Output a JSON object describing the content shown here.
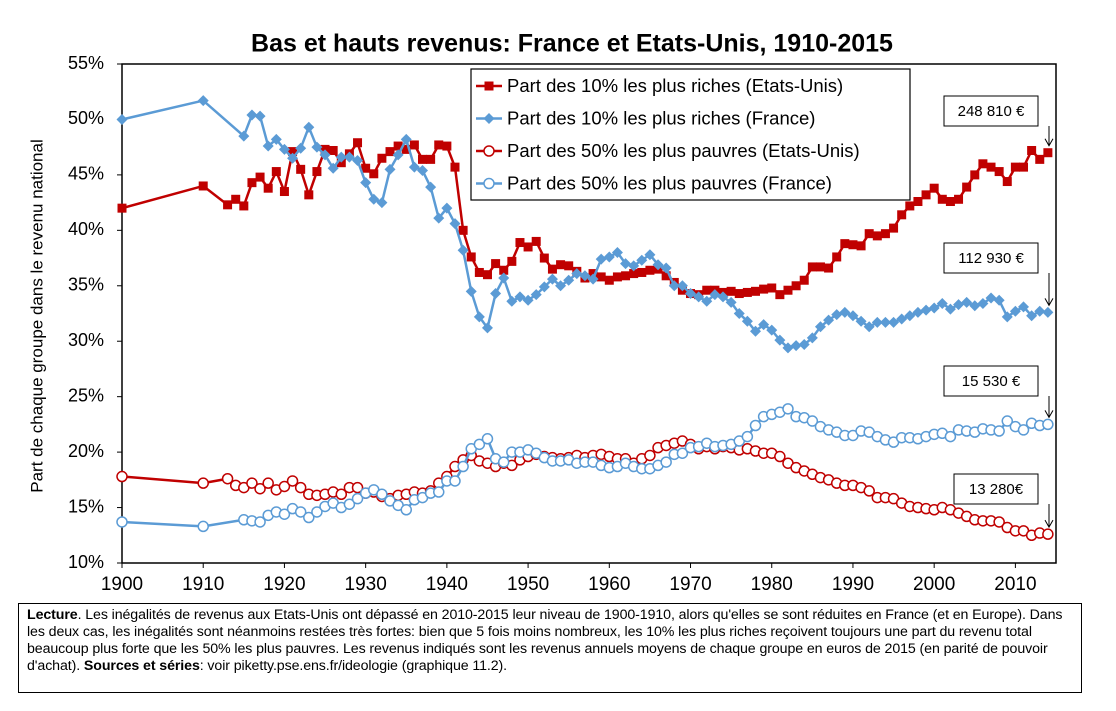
{
  "chart_data": {
    "type": "line",
    "title": "Bas et hauts revenus: France et Etats-Unis, 1910-2015",
    "y_label": "Part de chaque groupe dans le revenu national",
    "xlim": [
      1900,
      2015
    ],
    "xticks": [
      1900,
      1910,
      1920,
      1930,
      1940,
      1950,
      1960,
      1970,
      1980,
      1990,
      2000,
      2010
    ],
    "ylim": [
      10,
      55
    ],
    "yticks": [
      {
        "value": 10,
        "label": "10%"
      },
      {
        "value": 15,
        "label": "15%"
      },
      {
        "value": 20,
        "label": "20%"
      },
      {
        "value": 25,
        "label": "25%"
      },
      {
        "value": 30,
        "label": "30%"
      },
      {
        "value": 35,
        "label": "35%"
      },
      {
        "value": 40,
        "label": "40%"
      },
      {
        "value": 45,
        "label": "45%"
      },
      {
        "value": 50,
        "label": "50%"
      },
      {
        "value": 55,
        "label": "55%"
      }
    ],
    "legend": "top",
    "series": [
      {
        "name": "Part des 10% les plus riches (Etats-Unis)",
        "color": "#c00000",
        "marker": "square",
        "x": [
          1900,
          1910,
          1913,
          1914,
          1915,
          1916,
          1917,
          1918,
          1919,
          1920,
          1921,
          1922,
          1923,
          1924,
          1925,
          1926,
          1927,
          1928,
          1929,
          1930,
          1931,
          1932,
          1933,
          1934,
          1935,
          1936,
          1937,
          1938,
          1939,
          1940,
          1941,
          1942,
          1943,
          1944,
          1945,
          1946,
          1947,
          1948,
          1949,
          1950,
          1951,
          1952,
          1953,
          1954,
          1955,
          1956,
          1957,
          1958,
          1959,
          1960,
          1961,
          1962,
          1963,
          1964,
          1965,
          1966,
          1967,
          1968,
          1969,
          1970,
          1971,
          1972,
          1973,
          1974,
          1975,
          1976,
          1977,
          1978,
          1979,
          1980,
          1981,
          1982,
          1983,
          1984,
          1985,
          1986,
          1987,
          1988,
          1989,
          1990,
          1991,
          1992,
          1993,
          1994,
          1995,
          1996,
          1997,
          1998,
          1999,
          2000,
          2001,
          2002,
          2003,
          2004,
          2005,
          2006,
          2007,
          2008,
          2009,
          2010,
          2011,
          2012,
          2013,
          2014
        ],
        "values": [
          42,
          44,
          42.3,
          42.8,
          42.2,
          44.3,
          44.8,
          43.8,
          45.3,
          43.5,
          47.1,
          45.5,
          43.2,
          45.3,
          47.3,
          47.2,
          46.1,
          46.9,
          47.9,
          45.6,
          45.1,
          46.5,
          47.1,
          47.6,
          47.3,
          47.7,
          46.4,
          46.4,
          47.7,
          47.6,
          45.7,
          40.0,
          37.6,
          36.2,
          36.0,
          37.0,
          36.4,
          37.2,
          38.9,
          38.5,
          39.0,
          37.5,
          36.5,
          36.9,
          36.8,
          36.3,
          35.7,
          36.1,
          35.8,
          35.5,
          35.8,
          35.9,
          36.1,
          36.2,
          36.4,
          36.5,
          35.9,
          35.3,
          34.6,
          34.3,
          34.2,
          34.6,
          34.6,
          34.4,
          34.5,
          34.3,
          34.4,
          34.5,
          34.7,
          34.8,
          34.2,
          34.6,
          35.0,
          35.5,
          36.7,
          36.7,
          36.6,
          37.6,
          38.8,
          38.7,
          38.6,
          39.7,
          39.5,
          39.7,
          40.2,
          41.4,
          42.2,
          42.6,
          43.2,
          43.8,
          42.8,
          42.6,
          42.8,
          43.9,
          45.0,
          46.0,
          45.7,
          45.3,
          44.4,
          45.7,
          45.7,
          47.2,
          46.4,
          47.0
        ]
      },
      {
        "name": "Part des 10% les plus riches (France)",
        "color": "#5b9bd5",
        "marker": "diamond",
        "x": [
          1900,
          1910,
          1915,
          1916,
          1917,
          1918,
          1919,
          1920,
          1921,
          1922,
          1923,
          1924,
          1925,
          1926,
          1927,
          1928,
          1929,
          1930,
          1931,
          1932,
          1933,
          1934,
          1935,
          1936,
          1937,
          1938,
          1939,
          1940,
          1941,
          1942,
          1943,
          1944,
          1945,
          1946,
          1947,
          1948,
          1949,
          1950,
          1951,
          1952,
          1953,
          1954,
          1955,
          1956,
          1957,
          1958,
          1959,
          1960,
          1961,
          1962,
          1963,
          1964,
          1965,
          1966,
          1967,
          1968,
          1969,
          1970,
          1971,
          1972,
          1973,
          1974,
          1975,
          1976,
          1977,
          1978,
          1979,
          1980,
          1981,
          1982,
          1983,
          1984,
          1985,
          1986,
          1987,
          1988,
          1989,
          1990,
          1991,
          1992,
          1993,
          1994,
          1995,
          1996,
          1997,
          1998,
          1999,
          2000,
          2001,
          2002,
          2003,
          2004,
          2005,
          2006,
          2007,
          2008,
          2009,
          2010,
          2011,
          2012,
          2013,
          2014
        ],
        "values": [
          50,
          51.7,
          48.5,
          50.4,
          50.3,
          47.6,
          48.2,
          47.3,
          46.5,
          47.4,
          49.3,
          47.5,
          46.8,
          45.6,
          46.6,
          46.6,
          46.3,
          44.3,
          42.8,
          42.5,
          45.5,
          46.8,
          48.2,
          45.7,
          45.4,
          43.9,
          41.1,
          42.0,
          40.6,
          38.2,
          34.5,
          32.2,
          31.2,
          34.3,
          35.7,
          33.6,
          34.0,
          33.7,
          34.2,
          34.9,
          35.6,
          35.0,
          35.5,
          36.1,
          35.9,
          35.6,
          37.4,
          37.6,
          38.0,
          37.0,
          36.8,
          37.3,
          37.8,
          36.9,
          36.6,
          35.0,
          35.0,
          34.3,
          34.0,
          33.6,
          34.2,
          34.0,
          33.5,
          32.5,
          31.8,
          30.9,
          31.5,
          31.0,
          30.1,
          29.4,
          29.6,
          29.7,
          30.3,
          31.3,
          31.9,
          32.4,
          32.6,
          32.3,
          31.8,
          31.3,
          31.7,
          31.7,
          31.7,
          32.0,
          32.3,
          32.6,
          32.8,
          33.0,
          33.4,
          32.9,
          33.3,
          33.5,
          33.2,
          33.4,
          33.9,
          33.7,
          32.2,
          32.7,
          33.1,
          32.3,
          32.7,
          32.6
        ]
      },
      {
        "name": "Part des 50% les plus pauvres (Etats-Unis)",
        "color": "#c00000",
        "marker": "circle",
        "x": [
          1900,
          1910,
          1913,
          1914,
          1915,
          1916,
          1917,
          1918,
          1919,
          1920,
          1921,
          1922,
          1923,
          1924,
          1925,
          1926,
          1927,
          1928,
          1929,
          1930,
          1931,
          1932,
          1933,
          1934,
          1935,
          1936,
          1937,
          1938,
          1939,
          1940,
          1941,
          1942,
          1943,
          1944,
          1945,
          1946,
          1947,
          1948,
          1949,
          1950,
          1951,
          1952,
          1953,
          1954,
          1955,
          1956,
          1957,
          1958,
          1959,
          1960,
          1961,
          1962,
          1963,
          1964,
          1965,
          1966,
          1967,
          1968,
          1969,
          1970,
          1971,
          1972,
          1973,
          1974,
          1975,
          1976,
          1977,
          1978,
          1979,
          1980,
          1981,
          1982,
          1983,
          1984,
          1985,
          1986,
          1987,
          1988,
          1989,
          1990,
          1991,
          1992,
          1993,
          1994,
          1995,
          1996,
          1997,
          1998,
          1999,
          2000,
          2001,
          2002,
          2003,
          2004,
          2005,
          2006,
          2007,
          2008,
          2009,
          2010,
          2011,
          2012,
          2013,
          2014
        ],
        "values": [
          17.8,
          17.2,
          17.6,
          17.0,
          16.8,
          17.2,
          16.7,
          17.2,
          16.6,
          16.9,
          17.4,
          16.8,
          16.2,
          16.1,
          16.2,
          16.4,
          16.2,
          16.8,
          16.8,
          16.3,
          16.4,
          16.0,
          15.8,
          16.1,
          16.2,
          16.4,
          16.3,
          16.5,
          17.2,
          17.8,
          18.7,
          19.3,
          19.7,
          19.2,
          19.0,
          18.7,
          19.0,
          18.8,
          19.3,
          19.6,
          19.8,
          19.6,
          19.5,
          19.4,
          19.5,
          19.7,
          19.5,
          19.7,
          19.8,
          19.6,
          19.4,
          19.4,
          19.0,
          19.4,
          19.7,
          20.4,
          20.6,
          20.8,
          21.0,
          20.7,
          20.3,
          20.5,
          20.3,
          20.5,
          20.4,
          20.2,
          20.3,
          20.1,
          19.9,
          19.9,
          19.6,
          19.0,
          18.6,
          18.3,
          18.0,
          17.7,
          17.5,
          17.2,
          17.0,
          17.0,
          16.8,
          16.5,
          15.9,
          15.9,
          15.8,
          15.4,
          15.1,
          15.0,
          14.9,
          14.8,
          15.0,
          14.8,
          14.5,
          14.2,
          13.9,
          13.8,
          13.8,
          13.7,
          13.2,
          12.9,
          12.9,
          12.5,
          12.7,
          12.6
        ]
      },
      {
        "name": "Part des 50% les plus pauvres (France)",
        "color": "#5b9bd5",
        "marker": "circle",
        "x": [
          1900,
          1910,
          1915,
          1916,
          1917,
          1918,
          1919,
          1920,
          1921,
          1922,
          1923,
          1924,
          1925,
          1926,
          1927,
          1928,
          1929,
          1930,
          1931,
          1932,
          1933,
          1934,
          1935,
          1936,
          1937,
          1938,
          1939,
          1940,
          1941,
          1942,
          1943,
          1944,
          1945,
          1946,
          1947,
          1948,
          1949,
          1950,
          1951,
          1952,
          1953,
          1954,
          1955,
          1956,
          1957,
          1958,
          1959,
          1960,
          1961,
          1962,
          1963,
          1964,
          1965,
          1966,
          1967,
          1968,
          1969,
          1970,
          1971,
          1972,
          1973,
          1974,
          1975,
          1976,
          1977,
          1978,
          1979,
          1980,
          1981,
          1982,
          1983,
          1984,
          1985,
          1986,
          1987,
          1988,
          1989,
          1990,
          1991,
          1992,
          1993,
          1994,
          1995,
          1996,
          1997,
          1998,
          1999,
          2000,
          2001,
          2002,
          2003,
          2004,
          2005,
          2006,
          2007,
          2008,
          2009,
          2010,
          2011,
          2012,
          2013,
          2014
        ],
        "values": [
          13.7,
          13.3,
          13.9,
          13.8,
          13.7,
          14.3,
          14.6,
          14.4,
          14.9,
          14.6,
          14.1,
          14.6,
          15.1,
          15.4,
          15.0,
          15.3,
          15.8,
          16.3,
          16.6,
          16.2,
          15.6,
          15.2,
          14.8,
          15.7,
          15.9,
          16.3,
          16.4,
          17.4,
          17.4,
          18.7,
          20.3,
          20.7,
          21.2,
          19.4,
          19.1,
          20.0,
          20.0,
          20.2,
          19.9,
          19.5,
          19.2,
          19.2,
          19.3,
          19.0,
          19.1,
          19.1,
          18.8,
          18.6,
          18.7,
          19.0,
          18.7,
          18.5,
          18.5,
          18.8,
          19.1,
          19.8,
          19.9,
          20.4,
          20.5,
          20.8,
          20.5,
          20.6,
          20.7,
          21.0,
          21.4,
          22.4,
          23.2,
          23.4,
          23.6,
          23.9,
          23.2,
          23.1,
          22.8,
          22.3,
          22.0,
          21.8,
          21.5,
          21.5,
          21.9,
          21.8,
          21.4,
          21.1,
          20.9,
          21.3,
          21.3,
          21.2,
          21.4,
          21.6,
          21.7,
          21.4,
          22.0,
          21.9,
          21.8,
          22.1,
          22.0,
          21.9,
          22.8,
          22.3,
          22.0,
          22.6,
          22.4,
          22.5
        ]
      }
    ],
    "annotations": [
      "248 810 €",
      "112 930 €",
      "15 530 €",
      "13 280€"
    ],
    "note": {
      "lead": "Lecture",
      "text": ". Les inégalités de revenus aux Etats-Unis ont dépassé en 2010-2015 leur niveau de 1900-1910, alors qu'elles se sont réduites en France (et en Europe). Dans les deux cas, les inégalités sont néanmoins restées très fortes: bien que 5 fois moins nombreux, les 10% les plus riches reçoivent toujours une part du revenu total beaucoup plus forte que les 50% les plus pauvres. Les revenus indiqués sont les revenus annuels moyens de chaque groupe en euros de 2015 (en parité de pouvoir d'achat). ",
      "sources_label": "Sources et séries",
      "sources": ": voir piketty.pse.ens.fr/ideologie (graphique 11.2)."
    }
  }
}
